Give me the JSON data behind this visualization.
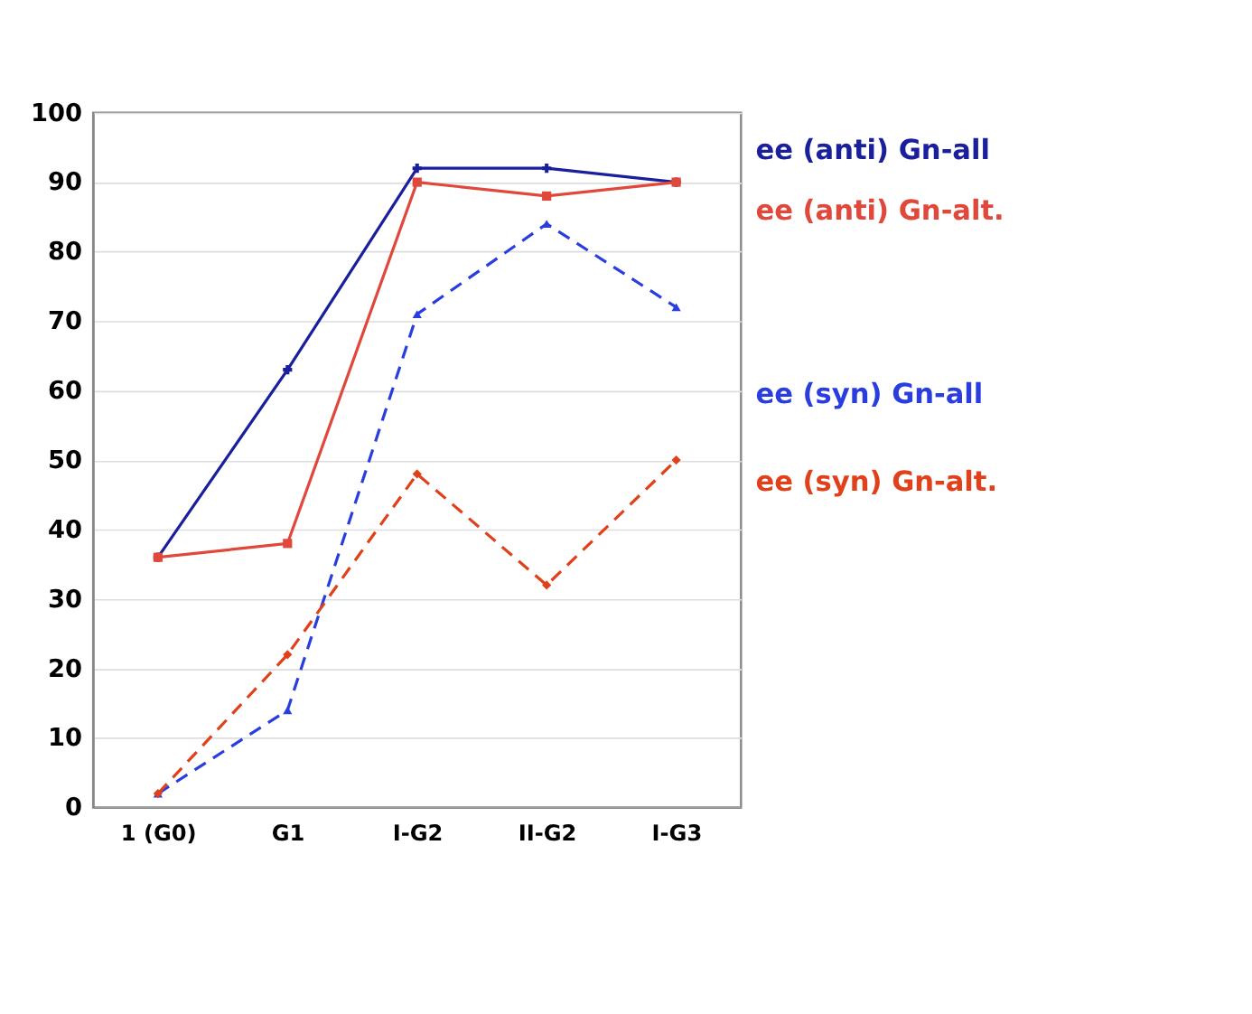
{
  "chart_data": {
    "type": "line",
    "categories": [
      "1 (G0)",
      "G1",
      "I-G2",
      "II-G2",
      "I-G3"
    ],
    "ylim": [
      0,
      100
    ],
    "yticks": [
      0,
      10,
      20,
      30,
      40,
      50,
      60,
      70,
      80,
      90,
      100
    ],
    "grid": "y",
    "series": [
      {
        "name": "ee (anti) Gn-all",
        "color": "#1a1f9c",
        "line_style": "solid",
        "marker": "cross",
        "values": [
          36,
          63,
          92,
          92,
          90
        ]
      },
      {
        "name": "ee (anti) Gn-alt.",
        "color": "#e0483c",
        "line_style": "solid",
        "marker": "square",
        "values": [
          36,
          38,
          90,
          88,
          90
        ]
      },
      {
        "name": "ee (syn) Gn-all",
        "color": "#2a3ee0",
        "line_style": "dashed",
        "marker": "triangle",
        "values": [
          2,
          14,
          71,
          84,
          72
        ]
      },
      {
        "name": "ee (syn) Gn-alt.",
        "color": "#e0401a",
        "line_style": "dashed",
        "marker": "diamond",
        "values": [
          2,
          22,
          48,
          32,
          50
        ]
      }
    ]
  }
}
